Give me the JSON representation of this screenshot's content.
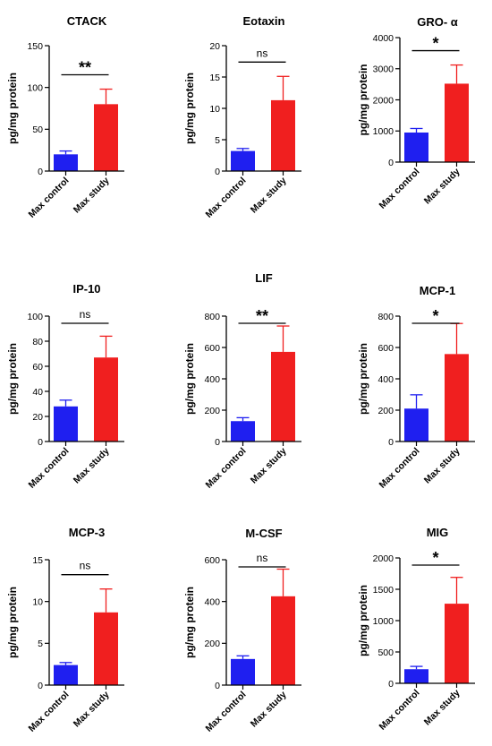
{
  "chart_data": [
    {
      "type": "bar",
      "title": "CTACK",
      "ylabel": "pg/mg protein",
      "categories": [
        "Max control",
        "Max study"
      ],
      "ylim": [
        0,
        150
      ],
      "yticks": [
        0,
        50,
        100,
        150
      ],
      "values": [
        20,
        80
      ],
      "errors": [
        4,
        18
      ],
      "colors": [
        "#1f1ff0",
        "#f01f1f"
      ],
      "significance": "**"
    },
    {
      "type": "bar",
      "title": "Eotaxin",
      "ylabel": "pg/mg protein",
      "categories": [
        "Max control",
        "Max study"
      ],
      "ylim": [
        0,
        20
      ],
      "yticks": [
        0,
        5,
        10,
        15,
        20
      ],
      "values": [
        3.2,
        11.3
      ],
      "errors": [
        0.4,
        3.8
      ],
      "colors": [
        "#1f1ff0",
        "#f01f1f"
      ],
      "significance": "ns"
    },
    {
      "type": "bar",
      "title": "GRO- α",
      "ylabel": "pg/mg protein",
      "categories": [
        "Max control",
        "Max study"
      ],
      "ylim": [
        0,
        4000
      ],
      "yticks": [
        0,
        1000,
        2000,
        3000,
        4000
      ],
      "values": [
        950,
        2520
      ],
      "errors": [
        130,
        600
      ],
      "colors": [
        "#1f1ff0",
        "#f01f1f"
      ],
      "significance": "*"
    },
    {
      "type": "bar",
      "title": "IP-10",
      "ylabel": "pg/mg protein",
      "categories": [
        "Max control",
        "Max study"
      ],
      "ylim": [
        0,
        100
      ],
      "yticks": [
        0,
        20,
        40,
        60,
        80,
        100
      ],
      "values": [
        28,
        67
      ],
      "errors": [
        5,
        17
      ],
      "colors": [
        "#1f1ff0",
        "#f01f1f"
      ],
      "significance": "ns"
    },
    {
      "type": "bar",
      "title": "LIF",
      "ylabel": "pg/mg protein",
      "categories": [
        "Max control",
        "Max study"
      ],
      "ylim": [
        0,
        800
      ],
      "yticks": [
        0,
        200,
        400,
        600,
        800
      ],
      "values": [
        130,
        572
      ],
      "errors": [
        22,
        165
      ],
      "colors": [
        "#1f1ff0",
        "#f01f1f"
      ],
      "significance": "**"
    },
    {
      "type": "bar",
      "title": "MCP-1",
      "ylabel": "pg/mg protein",
      "categories": [
        "Max control",
        "Max study"
      ],
      "ylim": [
        0,
        800
      ],
      "yticks": [
        0,
        200,
        400,
        600,
        800
      ],
      "values": [
        210,
        558
      ],
      "errors": [
        88,
        195
      ],
      "colors": [
        "#1f1ff0",
        "#f01f1f"
      ],
      "significance": "*"
    },
    {
      "type": "bar",
      "title": "MCP-3",
      "ylabel": "pg/mg protein",
      "categories": [
        "Max control",
        "Max study"
      ],
      "ylim": [
        0,
        15
      ],
      "yticks": [
        0,
        5,
        10,
        15
      ],
      "values": [
        2.4,
        8.7
      ],
      "errors": [
        0.3,
        2.8
      ],
      "colors": [
        "#1f1ff0",
        "#f01f1f"
      ],
      "significance": "ns"
    },
    {
      "type": "bar",
      "title": "M-CSF",
      "ylabel": "pg/mg protein",
      "categories": [
        "Max control",
        "Max study"
      ],
      "ylim": [
        0,
        600
      ],
      "yticks": [
        0,
        200,
        400,
        600
      ],
      "values": [
        125,
        425
      ],
      "errors": [
        15,
        130
      ],
      "colors": [
        "#1f1ff0",
        "#f01f1f"
      ],
      "significance": "ns"
    },
    {
      "type": "bar",
      "title": "MIG",
      "ylabel": "pg/mg protein",
      "categories": [
        "Max control",
        "Max study"
      ],
      "ylim": [
        0,
        2000
      ],
      "yticks": [
        0,
        500,
        1000,
        1500,
        2000
      ],
      "values": [
        225,
        1270
      ],
      "errors": [
        45,
        420
      ],
      "colors": [
        "#1f1ff0",
        "#f01f1f"
      ],
      "significance": "*"
    }
  ]
}
